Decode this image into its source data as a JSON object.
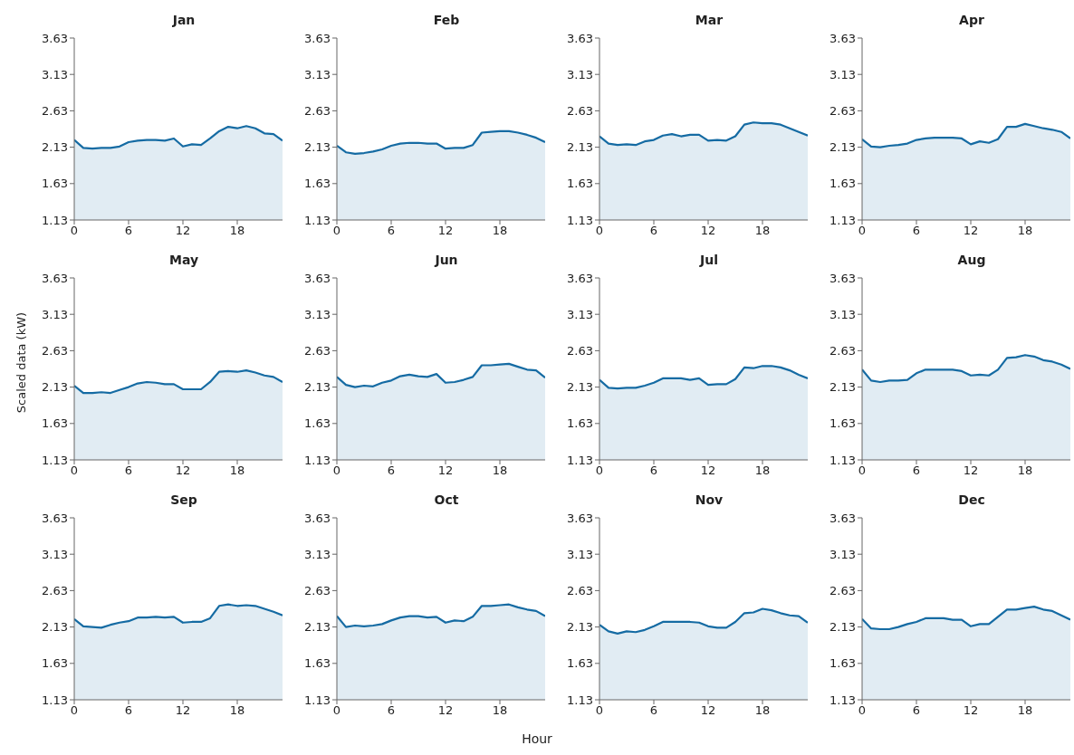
{
  "chart_data": [
    {
      "type": "area",
      "title": "Jan",
      "x": [
        0,
        1,
        2,
        3,
        4,
        5,
        6,
        7,
        8,
        9,
        10,
        11,
        12,
        13,
        14,
        15,
        16,
        17,
        18,
        19,
        20,
        21,
        22,
        23
      ],
      "values": [
        2.23,
        2.12,
        2.11,
        2.12,
        2.12,
        2.14,
        2.2,
        2.22,
        2.23,
        2.23,
        2.22,
        2.25,
        2.14,
        2.17,
        2.16,
        2.25,
        2.35,
        2.41,
        2.39,
        2.42,
        2.39,
        2.32,
        2.31,
        2.22
      ],
      "color": "#156ba3",
      "xlim": [
        0,
        23
      ],
      "xticks": [
        0,
        6,
        12,
        18
      ],
      "ylim": [
        1.13,
        3.63
      ],
      "yticks": [
        1.13,
        1.63,
        2.13,
        2.63,
        3.13,
        3.63
      ]
    },
    {
      "type": "area",
      "title": "Feb",
      "x": [
        0,
        1,
        2,
        3,
        4,
        5,
        6,
        7,
        8,
        9,
        10,
        11,
        12,
        13,
        14,
        15,
        16,
        17,
        18,
        19,
        20,
        21,
        22,
        23
      ],
      "values": [
        2.15,
        2.06,
        2.04,
        2.05,
        2.07,
        2.1,
        2.15,
        2.18,
        2.19,
        2.19,
        2.18,
        2.18,
        2.11,
        2.12,
        2.12,
        2.16,
        2.33,
        2.34,
        2.35,
        2.35,
        2.33,
        2.3,
        2.26,
        2.2
      ],
      "color": "#156ba3",
      "xlim": [
        0,
        23
      ],
      "xticks": [
        0,
        6,
        12,
        18
      ],
      "ylim": [
        1.13,
        3.63
      ],
      "yticks": [
        1.13,
        1.63,
        2.13,
        2.63,
        3.13,
        3.63
      ]
    },
    {
      "type": "area",
      "title": "Mar",
      "x": [
        0,
        1,
        2,
        3,
        4,
        5,
        6,
        7,
        8,
        9,
        10,
        11,
        12,
        13,
        14,
        15,
        16,
        17,
        18,
        19,
        20,
        21,
        22,
        23
      ],
      "values": [
        2.28,
        2.18,
        2.16,
        2.17,
        2.16,
        2.21,
        2.23,
        2.29,
        2.31,
        2.28,
        2.3,
        2.3,
        2.22,
        2.23,
        2.22,
        2.28,
        2.44,
        2.47,
        2.46,
        2.46,
        2.44,
        2.39,
        2.34,
        2.29
      ],
      "color": "#156ba3",
      "xlim": [
        0,
        23
      ],
      "xticks": [
        0,
        6,
        12,
        18
      ],
      "ylim": [
        1.13,
        3.63
      ],
      "yticks": [
        1.13,
        1.63,
        2.13,
        2.63,
        3.13,
        3.63
      ]
    },
    {
      "type": "area",
      "title": "Apr",
      "x": [
        0,
        1,
        2,
        3,
        4,
        5,
        6,
        7,
        8,
        9,
        10,
        11,
        12,
        13,
        14,
        15,
        16,
        17,
        18,
        19,
        20,
        21,
        22,
        23
      ],
      "values": [
        2.24,
        2.14,
        2.13,
        2.15,
        2.16,
        2.18,
        2.23,
        2.25,
        2.26,
        2.26,
        2.26,
        2.25,
        2.17,
        2.21,
        2.19,
        2.24,
        2.41,
        2.41,
        2.45,
        2.42,
        2.39,
        2.37,
        2.34,
        2.25
      ],
      "color": "#156ba3",
      "xlim": [
        0,
        23
      ],
      "xticks": [
        0,
        6,
        12,
        18
      ],
      "ylim": [
        1.13,
        3.63
      ],
      "yticks": [
        1.13,
        1.63,
        2.13,
        2.63,
        3.13,
        3.63
      ]
    },
    {
      "type": "area",
      "title": "May",
      "ylabel": "Scaled data (kW)",
      "x": [
        0,
        1,
        2,
        3,
        4,
        5,
        6,
        7,
        8,
        9,
        10,
        11,
        12,
        13,
        14,
        15,
        16,
        17,
        18,
        19,
        20,
        21,
        22,
        23
      ],
      "values": [
        2.15,
        2.05,
        2.05,
        2.06,
        2.05,
        2.09,
        2.13,
        2.18,
        2.2,
        2.19,
        2.17,
        2.17,
        2.1,
        2.1,
        2.1,
        2.2,
        2.34,
        2.35,
        2.34,
        2.36,
        2.33,
        2.29,
        2.27,
        2.2
      ],
      "color": "#156ba3",
      "xlim": [
        0,
        23
      ],
      "xticks": [
        0,
        6,
        12,
        18
      ],
      "ylim": [
        1.13,
        3.63
      ],
      "yticks": [
        1.13,
        1.63,
        2.13,
        2.63,
        3.13,
        3.63
      ]
    },
    {
      "type": "area",
      "title": "Jun",
      "x": [
        0,
        1,
        2,
        3,
        4,
        5,
        6,
        7,
        8,
        9,
        10,
        11,
        12,
        13,
        14,
        15,
        16,
        17,
        18,
        19,
        20,
        21,
        22,
        23
      ],
      "values": [
        2.27,
        2.16,
        2.13,
        2.15,
        2.14,
        2.19,
        2.22,
        2.28,
        2.3,
        2.28,
        2.27,
        2.31,
        2.19,
        2.2,
        2.23,
        2.27,
        2.43,
        2.43,
        2.44,
        2.45,
        2.41,
        2.37,
        2.36,
        2.26
      ],
      "color": "#156ba3",
      "xlim": [
        0,
        23
      ],
      "xticks": [
        0,
        6,
        12,
        18
      ],
      "ylim": [
        1.13,
        3.63
      ],
      "yticks": [
        1.13,
        1.63,
        2.13,
        2.63,
        3.13,
        3.63
      ]
    },
    {
      "type": "area",
      "title": "Jul",
      "x": [
        0,
        1,
        2,
        3,
        4,
        5,
        6,
        7,
        8,
        9,
        10,
        11,
        12,
        13,
        14,
        15,
        16,
        17,
        18,
        19,
        20,
        21,
        22,
        23
      ],
      "values": [
        2.23,
        2.12,
        2.11,
        2.12,
        2.12,
        2.15,
        2.19,
        2.25,
        2.25,
        2.25,
        2.23,
        2.25,
        2.16,
        2.17,
        2.17,
        2.24,
        2.4,
        2.39,
        2.42,
        2.42,
        2.4,
        2.36,
        2.3,
        2.25
      ],
      "color": "#156ba3",
      "xlim": [
        0,
        23
      ],
      "xticks": [
        0,
        6,
        12,
        18
      ],
      "ylim": [
        1.13,
        3.63
      ],
      "yticks": [
        1.13,
        1.63,
        2.13,
        2.63,
        3.13,
        3.63
      ]
    },
    {
      "type": "area",
      "title": "Aug",
      "x": [
        0,
        1,
        2,
        3,
        4,
        5,
        6,
        7,
        8,
        9,
        10,
        11,
        12,
        13,
        14,
        15,
        16,
        17,
        18,
        19,
        20,
        21,
        22,
        23
      ],
      "values": [
        2.37,
        2.22,
        2.2,
        2.22,
        2.22,
        2.23,
        2.32,
        2.37,
        2.37,
        2.37,
        2.37,
        2.35,
        2.29,
        2.3,
        2.29,
        2.37,
        2.53,
        2.54,
        2.57,
        2.55,
        2.5,
        2.48,
        2.44,
        2.38
      ],
      "color": "#156ba3",
      "xlim": [
        0,
        23
      ],
      "xticks": [
        0,
        6,
        12,
        18
      ],
      "ylim": [
        1.13,
        3.63
      ],
      "yticks": [
        1.13,
        1.63,
        2.13,
        2.63,
        3.13,
        3.63
      ]
    },
    {
      "type": "area",
      "title": "Sep",
      "x": [
        0,
        1,
        2,
        3,
        4,
        5,
        6,
        7,
        8,
        9,
        10,
        11,
        12,
        13,
        14,
        15,
        16,
        17,
        18,
        19,
        20,
        21,
        22,
        23
      ],
      "values": [
        2.24,
        2.14,
        2.13,
        2.12,
        2.16,
        2.19,
        2.21,
        2.26,
        2.26,
        2.27,
        2.26,
        2.27,
        2.19,
        2.2,
        2.2,
        2.25,
        2.42,
        2.44,
        2.42,
        2.43,
        2.42,
        2.38,
        2.34,
        2.29
      ],
      "color": "#156ba3",
      "xlim": [
        0,
        23
      ],
      "xticks": [
        0,
        6,
        12,
        18
      ],
      "ylim": [
        1.13,
        3.63
      ],
      "yticks": [
        1.13,
        1.63,
        2.13,
        2.63,
        3.13,
        3.63
      ]
    },
    {
      "type": "area",
      "title": "Oct",
      "xlabel": "Hour",
      "x": [
        0,
        1,
        2,
        3,
        4,
        5,
        6,
        7,
        8,
        9,
        10,
        11,
        12,
        13,
        14,
        15,
        16,
        17,
        18,
        19,
        20,
        21,
        22,
        23
      ],
      "values": [
        2.28,
        2.13,
        2.15,
        2.14,
        2.15,
        2.17,
        2.22,
        2.26,
        2.28,
        2.28,
        2.26,
        2.27,
        2.19,
        2.22,
        2.21,
        2.27,
        2.42,
        2.42,
        2.43,
        2.44,
        2.4,
        2.37,
        2.35,
        2.28
      ],
      "color": "#156ba3",
      "xlim": [
        0,
        23
      ],
      "xticks": [
        0,
        6,
        12,
        18
      ],
      "ylim": [
        1.13,
        3.63
      ],
      "yticks": [
        1.13,
        1.63,
        2.13,
        2.63,
        3.13,
        3.63
      ]
    },
    {
      "type": "area",
      "title": "Nov",
      "x": [
        0,
        1,
        2,
        3,
        4,
        5,
        6,
        7,
        8,
        9,
        10,
        11,
        12,
        13,
        14,
        15,
        16,
        17,
        18,
        19,
        20,
        21,
        22,
        23
      ],
      "values": [
        2.16,
        2.07,
        2.04,
        2.07,
        2.06,
        2.09,
        2.14,
        2.2,
        2.2,
        2.2,
        2.2,
        2.19,
        2.14,
        2.12,
        2.12,
        2.2,
        2.32,
        2.33,
        2.38,
        2.36,
        2.32,
        2.29,
        2.28,
        2.19
      ],
      "color": "#156ba3",
      "xlim": [
        0,
        23
      ],
      "xticks": [
        0,
        6,
        12,
        18
      ],
      "ylim": [
        1.13,
        3.63
      ],
      "yticks": [
        1.13,
        1.63,
        2.13,
        2.63,
        3.13,
        3.63
      ]
    },
    {
      "type": "area",
      "title": "Dec",
      "x": [
        0,
        1,
        2,
        3,
        4,
        5,
        6,
        7,
        8,
        9,
        10,
        11,
        12,
        13,
        14,
        15,
        16,
        17,
        18,
        19,
        20,
        21,
        22,
        23
      ],
      "values": [
        2.24,
        2.11,
        2.1,
        2.1,
        2.13,
        2.17,
        2.2,
        2.25,
        2.25,
        2.25,
        2.23,
        2.23,
        2.14,
        2.17,
        2.17,
        2.27,
        2.37,
        2.37,
        2.39,
        2.41,
        2.37,
        2.35,
        2.29,
        2.23
      ],
      "color": "#156ba3",
      "xlim": [
        0,
        23
      ],
      "xticks": [
        0,
        6,
        12,
        18
      ],
      "ylim": [
        1.13,
        3.63
      ],
      "yticks": [
        1.13,
        1.63,
        2.13,
        2.63,
        3.13,
        3.63
      ]
    }
  ]
}
